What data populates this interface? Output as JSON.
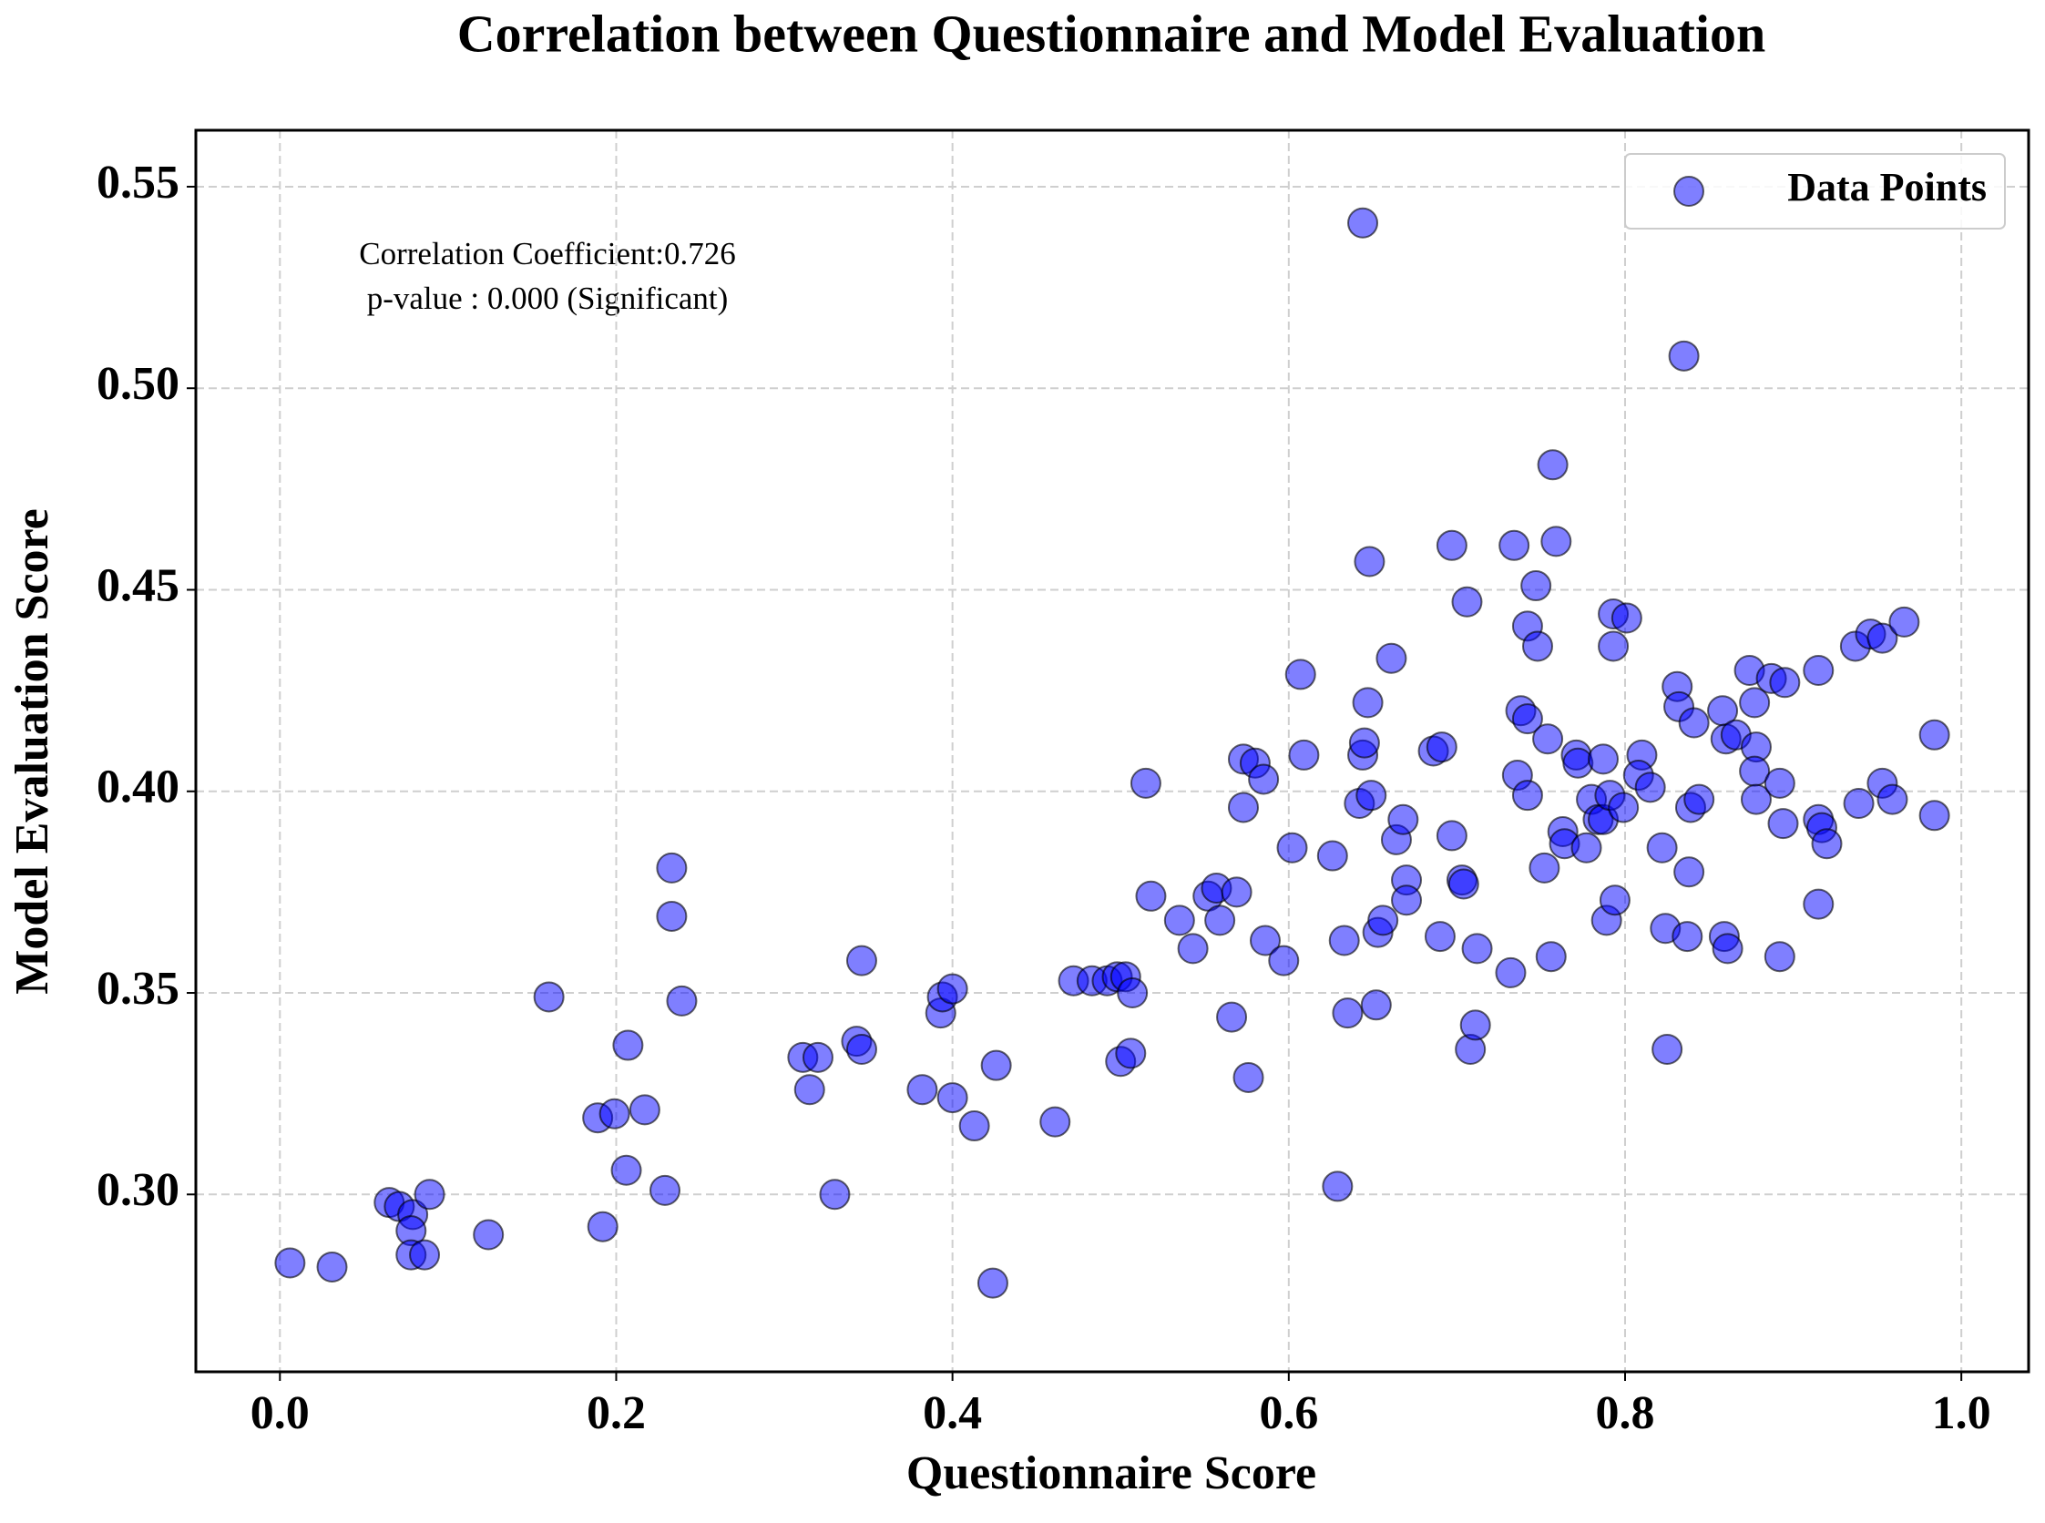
{
  "chart_data": {
    "type": "scatter",
    "title": "Correlation between Questionnaire and Model Evaluation",
    "xlabel": "Questionnaire Score",
    "ylabel": "Model Evaluation Score",
    "annotations": [
      "Correlation Coefficient:0.726",
      "p-value : 0.000 (Significant)"
    ],
    "legend": "upper right",
    "grid": true,
    "xlim": [
      -0.05,
      1.04
    ],
    "ylim": [
      0.256,
      0.564
    ],
    "xticks": [
      {
        "value": 0,
        "label": "0.0"
      },
      0.2,
      0.4,
      0.6,
      0.8,
      {
        "value": 1,
        "label": "1.0"
      }
    ],
    "yticks": [
      {
        "value": 0.3,
        "label": "0.30"
      },
      0.35,
      {
        "value": 0.4,
        "label": "0.40"
      },
      0.45,
      {
        "value": 0.5,
        "label": "0.50"
      },
      0.55
    ],
    "x": [
      0.006,
      0.031,
      0.065,
      0.071,
      0.079,
      0.078,
      0.078,
      0.086,
      0.089,
      0.124,
      0.16,
      0.189,
      0.199,
      0.207,
      0.206,
      0.217,
      0.229,
      0.192,
      0.233,
      0.233,
      0.239,
      0.311,
      0.32,
      0.315,
      0.33,
      0.343,
      0.346,
      0.346,
      0.382,
      0.393,
      0.394,
      0.4,
      0.4,
      0.413,
      0.426,
      0.424,
      0.461,
      0.472,
      0.483,
      0.492,
      0.498,
      0.503,
      0.507,
      0.5,
      0.506,
      0.515,
      0.518,
      0.535,
      0.543,
      0.552,
      0.557,
      0.559,
      0.569,
      0.566,
      0.573,
      0.573,
      0.58,
      0.585,
      0.576,
      0.586,
      0.597,
      0.602,
      0.609,
      0.607,
      0.626,
      0.629,
      0.633,
      0.635,
      0.644,
      0.645,
      0.642,
      0.647,
      0.648,
      0.649,
      0.644,
      0.653,
      0.656,
      0.652,
      0.661,
      0.664,
      0.668,
      0.67,
      0.67,
      0.686,
      0.691,
      0.69,
      0.697,
      0.697,
      0.703,
      0.704,
      0.706,
      0.708,
      0.711,
      0.712,
      0.732,
      0.734,
      0.736,
      0.738,
      0.742,
      0.742,
      0.742,
      0.747,
      0.748,
      0.754,
      0.752,
      0.756,
      0.757,
      0.759,
      0.763,
      0.764,
      0.771,
      0.772,
      0.777,
      0.78,
      0.784,
      0.787,
      0.787,
      0.789,
      0.791,
      0.793,
      0.793,
      0.794,
      0.799,
      0.801,
      0.81,
      0.808,
      0.815,
      0.822,
      0.824,
      0.825,
      0.831,
      0.832,
      0.835,
      0.837,
      0.838,
      0.839,
      0.841,
      0.844,
      0.859,
      0.861,
      0.858,
      0.86,
      0.866,
      0.874,
      0.877,
      0.878,
      0.877,
      0.878,
      0.887,
      0.895,
      0.892,
      0.894,
      0.892,
      0.915,
      0.915,
      0.917,
      0.92,
      0.915,
      0.937,
      0.939,
      0.946,
      0.953,
      0.953,
      0.959,
      0.966,
      0.984,
      0.984
    ],
    "series": [
      {
        "name": "Data Points",
        "color": "#0000ff",
        "values": [
          0.283,
          0.282,
          0.298,
          0.297,
          0.295,
          0.291,
          0.285,
          0.285,
          0.3,
          0.29,
          0.349,
          0.319,
          0.32,
          0.337,
          0.306,
          0.321,
          0.301,
          0.292,
          0.381,
          0.369,
          0.348,
          0.334,
          0.334,
          0.326,
          0.3,
          0.338,
          0.336,
          0.358,
          0.326,
          0.345,
          0.349,
          0.351,
          0.324,
          0.317,
          0.332,
          0.278,
          0.318,
          0.353,
          0.353,
          0.353,
          0.354,
          0.354,
          0.35,
          0.333,
          0.335,
          0.402,
          0.374,
          0.368,
          0.361,
          0.374,
          0.376,
          0.368,
          0.375,
          0.344,
          0.396,
          0.408,
          0.407,
          0.403,
          0.329,
          0.363,
          0.358,
          0.386,
          0.409,
          0.429,
          0.384,
          0.302,
          0.363,
          0.345,
          0.409,
          0.412,
          0.397,
          0.422,
          0.457,
          0.399,
          0.541,
          0.365,
          0.368,
          0.347,
          0.433,
          0.388,
          0.393,
          0.378,
          0.373,
          0.41,
          0.411,
          0.364,
          0.461,
          0.389,
          0.378,
          0.377,
          0.447,
          0.336,
          0.342,
          0.361,
          0.355,
          0.461,
          0.404,
          0.42,
          0.418,
          0.399,
          0.441,
          0.451,
          0.436,
          0.413,
          0.381,
          0.359,
          0.481,
          0.462,
          0.39,
          0.387,
          0.409,
          0.407,
          0.386,
          0.398,
          0.393,
          0.408,
          0.393,
          0.368,
          0.399,
          0.444,
          0.436,
          0.373,
          0.396,
          0.443,
          0.409,
          0.404,
          0.401,
          0.386,
          0.366,
          0.336,
          0.426,
          0.421,
          0.508,
          0.364,
          0.38,
          0.396,
          0.417,
          0.398,
          0.364,
          0.361,
          0.42,
          0.413,
          0.414,
          0.43,
          0.422,
          0.411,
          0.405,
          0.398,
          0.428,
          0.427,
          0.402,
          0.392,
          0.359,
          0.43,
          0.393,
          0.391,
          0.387,
          0.372,
          0.436,
          0.397,
          0.439,
          0.438,
          0.402,
          0.398,
          0.442,
          0.414,
          0.394
        ]
      }
    ]
  }
}
